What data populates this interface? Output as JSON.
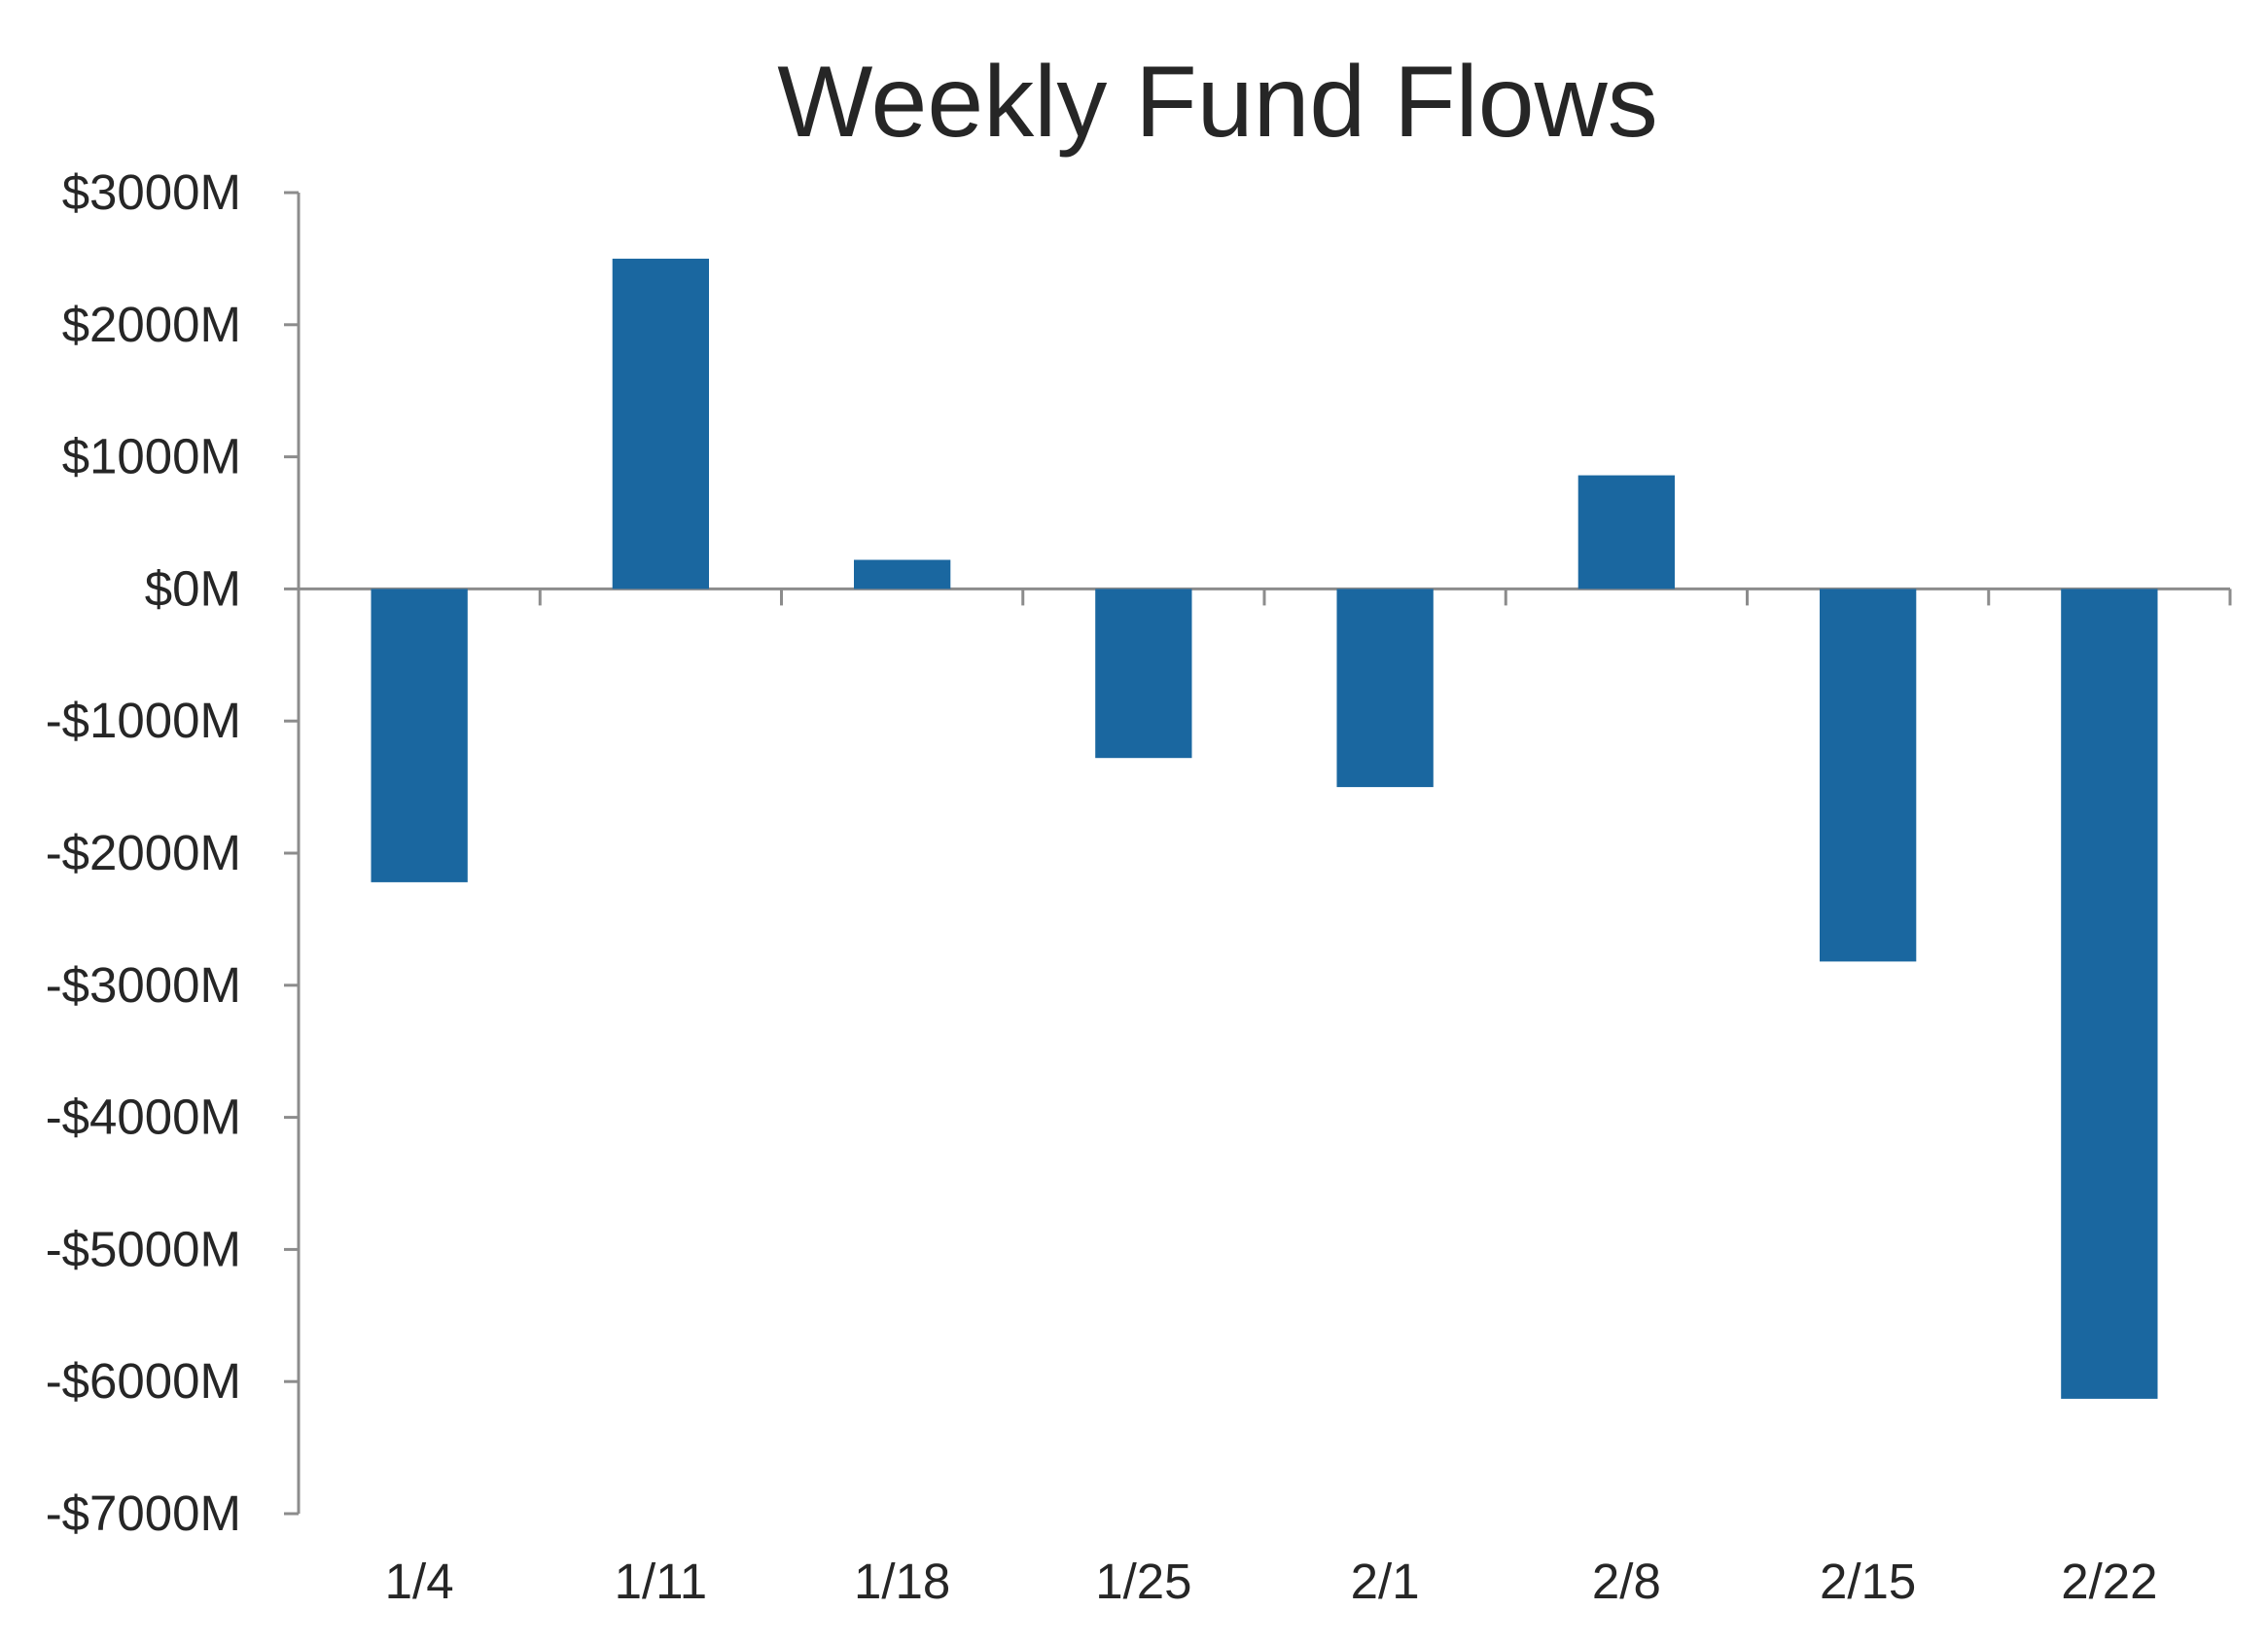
{
  "chart_data": {
    "type": "bar",
    "title": "Weekly Fund Flows",
    "xlabel": "",
    "ylabel": "",
    "categories": [
      "1/4",
      "1/11",
      "1/18",
      "1/25",
      "2/1",
      "2/8",
      "2/15",
      "2/22"
    ],
    "values": [
      -2220,
      2500,
      220,
      -1280,
      -1500,
      860,
      -2820,
      -6130
    ],
    "ylim": [
      -7000,
      3000
    ],
    "y_ticks": [
      3000,
      2000,
      1000,
      0,
      -1000,
      -2000,
      -3000,
      -4000,
      -5000,
      -6000,
      -7000
    ],
    "y_tick_labels": [
      "$3000M",
      "$2000M",
      "$1000M",
      "$0M",
      "-$1000M",
      "-$2000M",
      "-$3000M",
      "-$4000M",
      "-$5000M",
      "-$6000M",
      "-$7000M"
    ],
    "grid": false,
    "legend": "none",
    "colors": {
      "bar": "#1a67a0",
      "axis": "#8c8c8c",
      "text": "#262626"
    }
  }
}
